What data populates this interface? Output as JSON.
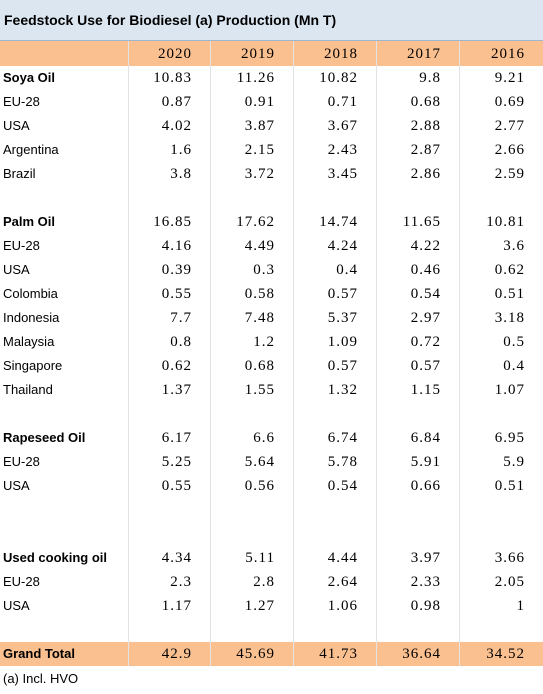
{
  "title": "Feedstock Use for Biodiesel (a) Production (Mn T)",
  "table": {
    "columns": [
      "2020",
      "2019",
      "2018",
      "2017",
      "2016"
    ],
    "groups": [
      {
        "name": "Soya Oil",
        "values": [
          10.83,
          11.26,
          10.82,
          9.8,
          9.21
        ],
        "rows": [
          {
            "label": "EU-28",
            "values": [
              0.87,
              0.91,
              0.71,
              0.68,
              0.69
            ]
          },
          {
            "label": "USA",
            "values": [
              4.02,
              3.87,
              3.67,
              2.88,
              2.77
            ]
          },
          {
            "label": "Argentina",
            "values": [
              1.6,
              2.15,
              2.43,
              2.87,
              2.66
            ]
          },
          {
            "label": "Brazil",
            "values": [
              3.8,
              3.72,
              3.45,
              2.86,
              2.59
            ]
          }
        ]
      },
      {
        "name": "Palm Oil",
        "values": [
          16.85,
          17.62,
          14.74,
          11.65,
          10.81
        ],
        "rows": [
          {
            "label": "EU-28",
            "values": [
              4.16,
              4.49,
              4.24,
              4.22,
              3.6
            ]
          },
          {
            "label": "USA",
            "values": [
              0.39,
              0.3,
              0.4,
              0.46,
              0.62
            ]
          },
          {
            "label": "Colombia",
            "values": [
              0.55,
              0.58,
              0.57,
              0.54,
              0.51
            ]
          },
          {
            "label": "Indonesia",
            "values": [
              7.7,
              7.48,
              5.37,
              2.97,
              3.18
            ]
          },
          {
            "label": "Malaysia",
            "values": [
              0.8,
              1.2,
              1.09,
              0.72,
              0.5
            ]
          },
          {
            "label": "Singapore",
            "values": [
              0.62,
              0.68,
              0.57,
              0.57,
              0.4
            ]
          },
          {
            "label": "Thailand",
            "values": [
              1.37,
              1.55,
              1.32,
              1.15,
              1.07
            ]
          }
        ]
      },
      {
        "name": "Rapeseed Oil",
        "values": [
          6.17,
          6.6,
          6.74,
          6.84,
          6.95
        ],
        "rows": [
          {
            "label": "EU-28",
            "values": [
              5.25,
              5.64,
              5.78,
              5.91,
              5.9
            ]
          },
          {
            "label": "USA",
            "values": [
              0.55,
              0.56,
              0.54,
              0.66,
              0.51
            ]
          }
        ]
      },
      {
        "name": "Used cooking oil",
        "values": [
          4.34,
          5.11,
          4.44,
          3.97,
          3.66
        ],
        "rows": [
          {
            "label": "EU-28",
            "values": [
              2.3,
              2.8,
              2.64,
              2.33,
              2.05
            ]
          },
          {
            "label": "USA",
            "values": [
              1.17,
              1.27,
              1.06,
              0.98,
              1
            ]
          }
        ]
      }
    ],
    "total": {
      "label": "Grand Total",
      "values": [
        42.9,
        45.69,
        41.73,
        36.64,
        34.52
      ]
    }
  },
  "footnote": "(a) Incl. HVO"
}
